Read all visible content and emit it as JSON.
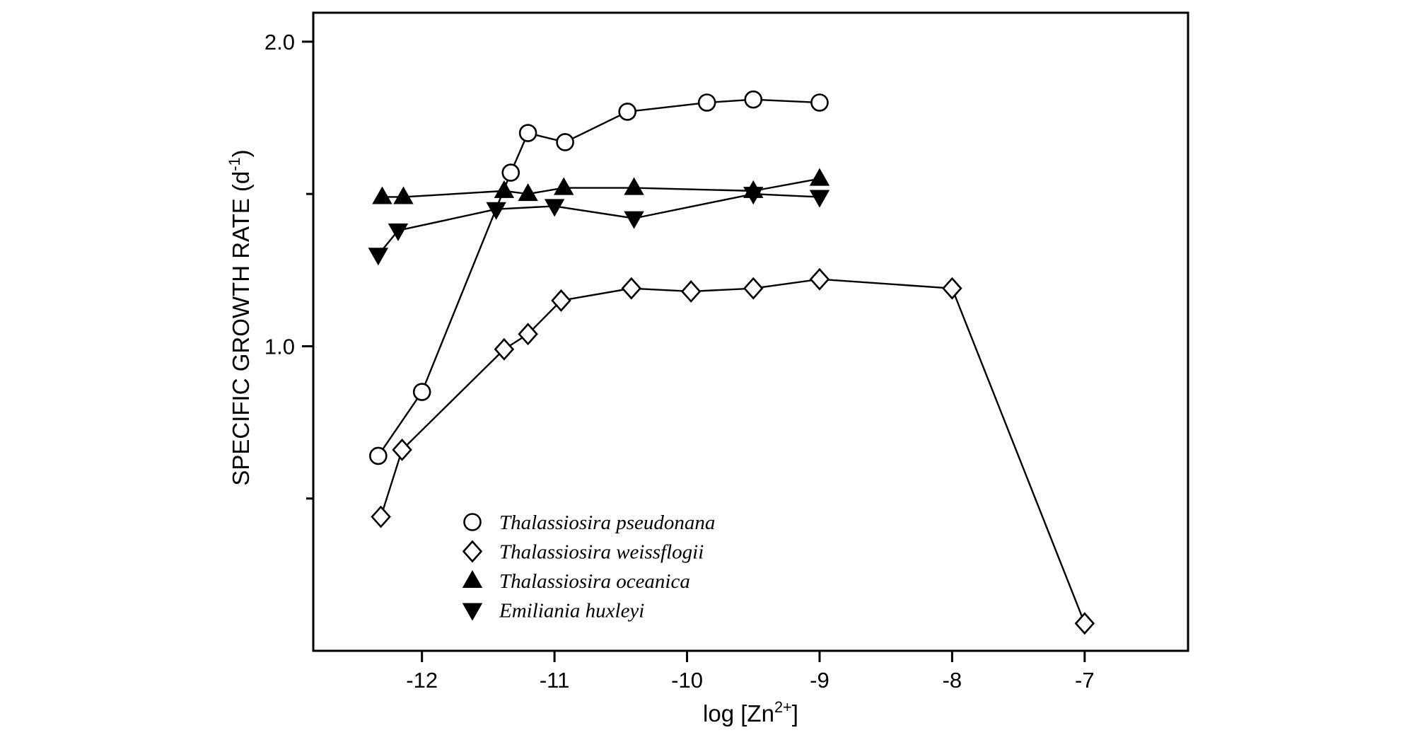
{
  "page": {
    "background": "#ffffff",
    "ink_color": "#000000"
  },
  "chart_data": {
    "type": "line",
    "title": "",
    "xlabel": {
      "pre": "log [Zn",
      "sup": "2+",
      "post": "]"
    },
    "ylabel": {
      "pre": "SPECIFIC GROWTH RATE (d",
      "sup": "-1",
      "post": ")"
    },
    "xlim": [
      -12.82,
      -6.22
    ],
    "ylim": [
      0,
      2.095
    ],
    "x_ticks": [
      -12,
      -11,
      -10,
      -9,
      -8,
      -7
    ],
    "x_tick_labels": [
      "-12",
      "-11",
      "-10",
      "-9",
      "-8",
      "-7"
    ],
    "y_major_ticks": [
      1.0,
      2.0
    ],
    "y_major_tick_labels": [
      "1.0",
      "2.0"
    ],
    "y_minor_ticks": [
      0.5,
      1.5
    ],
    "grid": false,
    "frame": "box",
    "legend_position": "inside-lower-left",
    "series": [
      {
        "key": "pseudonana",
        "name": "Thalassiosira pseudonana",
        "marker": "circle-open",
        "color": "#000000",
        "points": [
          [
            -12.33,
            0.64
          ],
          [
            -12.0,
            0.85
          ],
          [
            -11.33,
            1.57
          ],
          [
            -11.2,
            1.7
          ],
          [
            -10.92,
            1.67
          ],
          [
            -10.45,
            1.77
          ],
          [
            -9.85,
            1.8
          ],
          [
            -9.5,
            1.81
          ],
          [
            -9.0,
            1.8
          ]
        ]
      },
      {
        "key": "weissflogii",
        "name": "Thalassiosira weissflogii",
        "marker": "diamond-open",
        "color": "#000000",
        "points": [
          [
            -12.31,
            0.44
          ],
          [
            -12.15,
            0.66
          ],
          [
            -11.38,
            0.99
          ],
          [
            -11.2,
            1.04
          ],
          [
            -10.95,
            1.15
          ],
          [
            -10.42,
            1.19
          ],
          [
            -9.97,
            1.18
          ],
          [
            -9.5,
            1.19
          ],
          [
            -9.0,
            1.22
          ],
          [
            -8.0,
            1.19
          ],
          [
            -7.0,
            0.09
          ]
        ]
      },
      {
        "key": "oceanica",
        "name": "Thalassiosira oceanica",
        "marker": "triangle-up-filled",
        "color": "#000000",
        "points": [
          [
            -12.3,
            1.49
          ],
          [
            -12.14,
            1.49
          ],
          [
            -11.38,
            1.51
          ],
          [
            -11.2,
            1.5
          ],
          [
            -10.93,
            1.52
          ],
          [
            -10.4,
            1.52
          ],
          [
            -9.5,
            1.51
          ],
          [
            -9.0,
            1.55
          ]
        ]
      },
      {
        "key": "huxleyi",
        "name": "Emiliania huxleyi",
        "marker": "triangle-down-filled",
        "color": "#000000",
        "points": [
          [
            -12.33,
            1.3
          ],
          [
            -12.18,
            1.38
          ],
          [
            -11.44,
            1.45
          ],
          [
            -11.0,
            1.46
          ],
          [
            -10.4,
            1.42
          ],
          [
            -9.5,
            1.5
          ],
          [
            -9.0,
            1.49
          ]
        ]
      }
    ]
  }
}
